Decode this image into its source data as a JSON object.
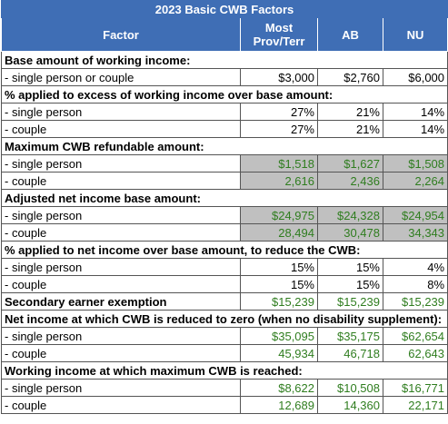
{
  "table": {
    "title": "2023 Basic CWB Factors",
    "header": [
      "Factor",
      "Most Prov/Terr",
      "AB",
      "NU"
    ],
    "rows": [
      [
        "Base amount of working income:"
      ],
      [
        "- single person or couple",
        "$3,000",
        "$2,760",
        "$6,000"
      ],
      [
        "% applied to excess of working income over base amount:"
      ],
      [
        "- single person",
        "27%",
        "21%",
        "14%"
      ],
      [
        "- couple",
        "27%",
        "21%",
        "14%"
      ],
      [
        "Maximum CWB refundable amount:"
      ],
      [
        "- single person",
        "$1,518",
        "$1,627",
        "$1,508"
      ],
      [
        "- couple",
        "2,616",
        "2,436",
        "2,264"
      ],
      [
        "Adjusted net income base amount:"
      ],
      [
        "- single person",
        "$24,975",
        "$24,328",
        "$24,954"
      ],
      [
        "- couple",
        "28,494",
        "30,478",
        "34,343"
      ],
      [
        "% applied to net income over base amount, to reduce the CWB:"
      ],
      [
        "- single person",
        "15%",
        "15%",
        "4%"
      ],
      [
        "- couple",
        "15%",
        "15%",
        "8%"
      ],
      [
        "Secondary earner exemption",
        "$15,239",
        "$15,239",
        "$15,239"
      ],
      [
        "Net income at which CWB is reduced to zero (when no disability supplement):"
      ],
      [
        "- single person",
        "$35,095",
        "$35,175",
        "$62,654"
      ],
      [
        "- couple",
        "45,934",
        "46,718",
        "62,643"
      ],
      [
        "Working income at which maximum CWB is reached:"
      ],
      [
        "- single person",
        "$8,622",
        "$10,508",
        "$16,771"
      ],
      [
        "- couple",
        "12,689",
        "14,360",
        "22,171"
      ]
    ]
  }
}
